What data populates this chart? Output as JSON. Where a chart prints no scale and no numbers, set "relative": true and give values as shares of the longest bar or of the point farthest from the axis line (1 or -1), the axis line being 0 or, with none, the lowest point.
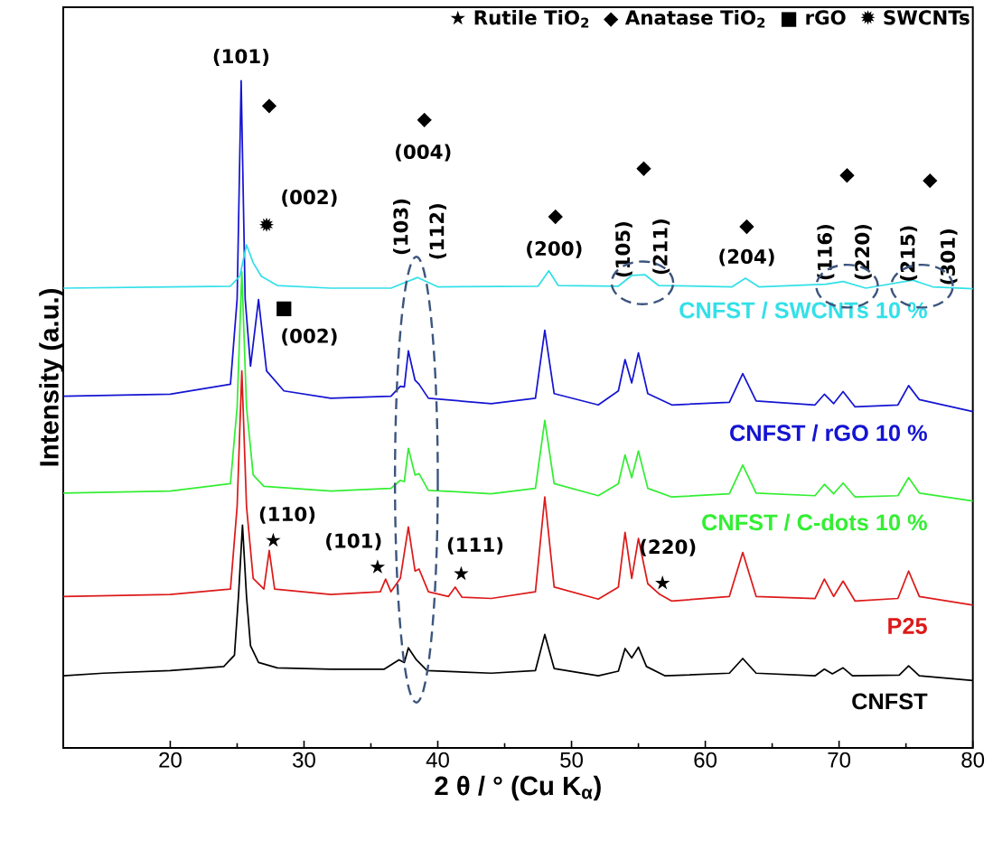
{
  "chart_data": {
    "type": "line",
    "relative": true,
    "xlabel": "2 θ / ° (Cu K$_{α}$)",
    "ylabel": "Intensity (a.u.)",
    "xlim": [
      12,
      80
    ],
    "xticks": [
      20,
      30,
      40,
      50,
      60,
      70,
      80
    ],
    "series": [
      {
        "name": "CNFST / SWCNTs 10 %",
        "color": "#33e0e8",
        "x": [
          12,
          20,
          24.5,
          25.2,
          25.7,
          26.2,
          26.8,
          28,
          32,
          36.5,
          38.5,
          40,
          47.5,
          48.3,
          49,
          53.5,
          54.5,
          55.5,
          56.5,
          62,
          63,
          64,
          69,
          70.3,
          72,
          75.5,
          77,
          80
        ],
        "values": [
          0.689,
          0.691,
          0.692,
          0.707,
          0.754,
          0.727,
          0.707,
          0.693,
          0.689,
          0.689,
          0.705,
          0.691,
          0.692,
          0.715,
          0.693,
          0.692,
          0.708,
          0.709,
          0.693,
          0.691,
          0.704,
          0.691,
          0.695,
          0.699,
          0.689,
          0.701,
          0.691,
          0.688
        ]
      },
      {
        "name": "CNFST / rGO 10 %",
        "color": "#1414d2",
        "x": [
          12,
          20,
          24.5,
          25.0,
          25.3,
          25.6,
          26.0,
          26.6,
          27.2,
          28.5,
          32,
          36.5,
          37.2,
          37.5,
          37.8,
          38.3,
          38.6,
          39.3,
          44,
          47.3,
          48.0,
          48.7,
          52,
          53.5,
          54.0,
          54.5,
          55.0,
          55.7,
          57.5,
          61.8,
          62.8,
          63.8,
          68.2,
          68.9,
          69.6,
          70.3,
          71.2,
          74.4,
          75.2,
          76,
          80
        ],
        "values": [
          0.527,
          0.53,
          0.545,
          0.673,
          1.0,
          0.673,
          0.572,
          0.672,
          0.565,
          0.535,
          0.524,
          0.527,
          0.542,
          0.541,
          0.595,
          0.551,
          0.545,
          0.524,
          0.516,
          0.524,
          0.626,
          0.531,
          0.514,
          0.535,
          0.582,
          0.547,
          0.592,
          0.531,
          0.514,
          0.518,
          0.561,
          0.52,
          0.514,
          0.53,
          0.516,
          0.534,
          0.511,
          0.514,
          0.543,
          0.522,
          0.504
        ]
      },
      {
        "name": "CNFST / C-dots 10 %",
        "color": "#33ee33",
        "x": [
          12,
          20,
          24.5,
          25.0,
          25.35,
          25.7,
          26.2,
          27,
          32,
          36.5,
          37.2,
          37.5,
          37.8,
          38.3,
          38.6,
          39.3,
          44,
          47.3,
          48.0,
          48.7,
          52,
          53.5,
          54.0,
          54.5,
          55.0,
          55.7,
          57.5,
          61.8,
          62.8,
          63.8,
          68.2,
          68.9,
          69.6,
          70.3,
          71.2,
          74.4,
          75.2,
          76,
          80
        ],
        "values": [
          0.382,
          0.385,
          0.396,
          0.511,
          0.714,
          0.511,
          0.409,
          0.392,
          0.385,
          0.389,
          0.401,
          0.399,
          0.449,
          0.409,
          0.411,
          0.386,
          0.381,
          0.389,
          0.491,
          0.396,
          0.378,
          0.396,
          0.439,
          0.405,
          0.445,
          0.389,
          0.376,
          0.381,
          0.424,
          0.382,
          0.378,
          0.395,
          0.381,
          0.397,
          0.376,
          0.378,
          0.405,
          0.382,
          0.37
        ]
      },
      {
        "name": "P25",
        "color": "#dd1a1a",
        "x": [
          12,
          20,
          24.5,
          25.0,
          25.35,
          25.7,
          26.2,
          27.0,
          27.4,
          27.8,
          32,
          35.7,
          36.1,
          36.5,
          37.2,
          37.8,
          38.3,
          38.6,
          39.3,
          40.8,
          41.3,
          41.8,
          44,
          47.3,
          48.0,
          48.7,
          52,
          53.5,
          54.0,
          54.5,
          55.0,
          55.7,
          56.6,
          57.5,
          61.8,
          62.8,
          63.8,
          68.2,
          68.9,
          69.6,
          70.3,
          71.2,
          74.4,
          75.2,
          76,
          80
        ],
        "values": [
          0.227,
          0.23,
          0.238,
          0.362,
          0.565,
          0.362,
          0.254,
          0.238,
          0.296,
          0.238,
          0.23,
          0.234,
          0.253,
          0.234,
          0.254,
          0.331,
          0.265,
          0.268,
          0.234,
          0.227,
          0.241,
          0.226,
          0.224,
          0.234,
          0.376,
          0.241,
          0.223,
          0.241,
          0.323,
          0.254,
          0.314,
          0.246,
          0.23,
          0.22,
          0.227,
          0.293,
          0.227,
          0.224,
          0.253,
          0.227,
          0.25,
          0.22,
          0.224,
          0.265,
          0.227,
          0.214
        ]
      },
      {
        "name": "CNFST",
        "color": "#000000",
        "x": [
          12,
          15,
          20,
          24,
          24.8,
          25.1,
          25.4,
          25.7,
          26.0,
          26.6,
          28,
          32,
          36,
          37.1,
          37.5,
          37.8,
          38.4,
          39.2,
          44,
          47.3,
          48.0,
          48.7,
          52,
          53.5,
          54.0,
          54.5,
          55.0,
          55.6,
          57,
          61.8,
          62.8,
          63.8,
          68.2,
          68.9,
          69.5,
          70.3,
          71,
          74.5,
          75.2,
          76,
          80
        ],
        "values": [
          0.108,
          0.112,
          0.116,
          0.122,
          0.139,
          0.227,
          0.334,
          0.227,
          0.153,
          0.128,
          0.12,
          0.118,
          0.118,
          0.132,
          0.128,
          0.15,
          0.132,
          0.116,
          0.112,
          0.116,
          0.17,
          0.119,
          0.108,
          0.115,
          0.149,
          0.135,
          0.151,
          0.122,
          0.108,
          0.112,
          0.134,
          0.112,
          0.108,
          0.118,
          0.111,
          0.12,
          0.108,
          0.109,
          0.123,
          0.108,
          0.101
        ]
      }
    ],
    "annotations": [
      "★ Rutile TiO$_{2}$",
      "◆ Anatase TiO$_{2}$",
      "■ rGO",
      "✹ SWCNTs",
      "(101)",
      "◆",
      "(002)",
      "✹",
      "■",
      "(002)",
      "◆",
      "(004)",
      "(103)",
      "(112)",
      "◆",
      "(200)",
      "(105)",
      "◆",
      "(211)",
      "◆",
      "(204)",
      "(116)",
      "◆",
      "(220)",
      "(215)",
      "◆",
      "(301)",
      "(110)",
      "★",
      "(101)",
      "★",
      "(111)",
      "★",
      "(220)",
      "★"
    ]
  }
}
